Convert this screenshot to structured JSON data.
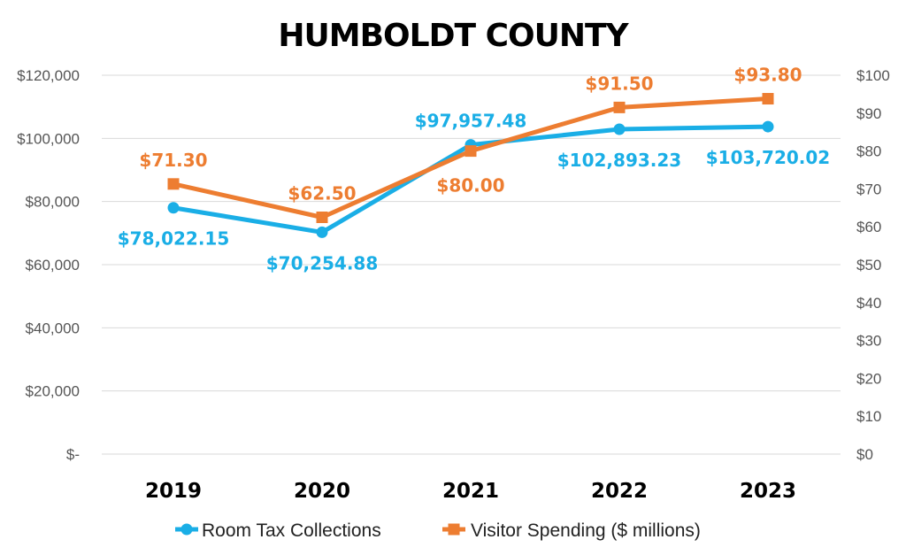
{
  "chart_data": {
    "type": "line",
    "title": "HUMBOLDT COUNTY",
    "categories": [
      "2019",
      "2020",
      "2021",
      "2022",
      "2023"
    ],
    "y_left": {
      "range": [
        0,
        120000
      ],
      "ticks": [
        0,
        20000,
        40000,
        60000,
        80000,
        100000,
        120000
      ],
      "tick_labels": [
        "$-",
        "$20,000",
        "$40,000",
        "$60,000",
        "$80,000",
        "$100,000",
        "$120,000"
      ]
    },
    "y_right": {
      "range": [
        0,
        100
      ],
      "ticks": [
        0,
        10,
        20,
        30,
        40,
        50,
        60,
        70,
        80,
        90,
        100
      ],
      "tick_labels": [
        "$0",
        "$10",
        "$20",
        "$30",
        "$40",
        "$50",
        "$60",
        "$70",
        "$80",
        "$90",
        "$100"
      ]
    },
    "series": [
      {
        "name": "Room Tax Collections",
        "axis": "left",
        "color": "#1aaee6",
        "marker": "circle",
        "values": [
          78022.15,
          70254.88,
          97957.48,
          102893.23,
          103720.02
        ],
        "data_labels": [
          "$78,022.15",
          "$70,254.88",
          "$97,957.48",
          "$102,893.23",
          "$103,720.02"
        ],
        "label_positions": [
          "below",
          "below",
          "above",
          "below",
          "below"
        ]
      },
      {
        "name": "Visitor Spending ($ millions)",
        "axis": "right",
        "color": "#ed7d31",
        "marker": "square",
        "values": [
          71.3,
          62.5,
          80.0,
          91.5,
          93.8
        ],
        "data_labels": [
          "$71.30",
          "$62.50",
          "$80.00",
          "$91.50",
          "$93.80"
        ],
        "label_positions": [
          "above",
          "above",
          "below",
          "above",
          "above"
        ]
      }
    ],
    "grid": "horizontal",
    "legend_position": "bottom"
  }
}
